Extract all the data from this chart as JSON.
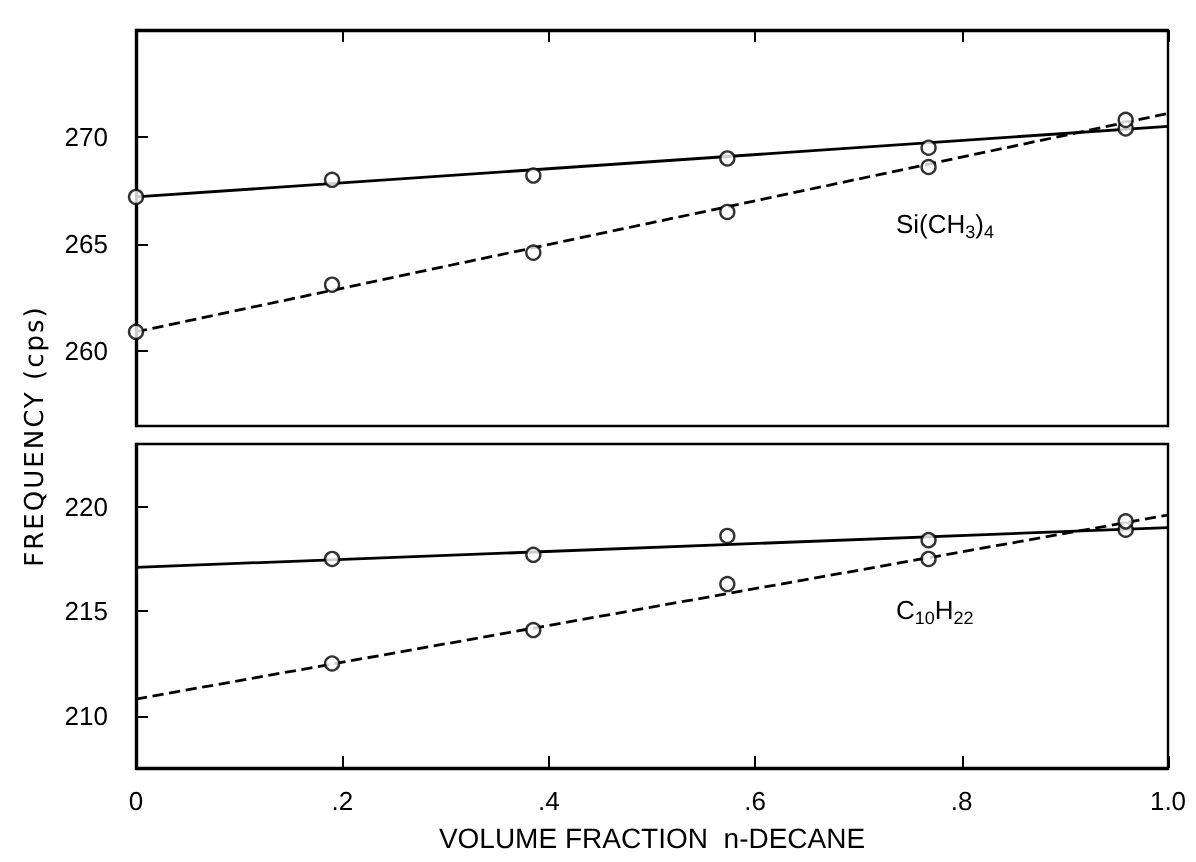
{
  "chart_data": [
    {
      "type": "scatter",
      "ylabel": "FREQUENCY (cps)",
      "xlim": [
        0,
        1.0
      ],
      "xticks": [
        {
          "value": 0,
          "label": null
        },
        {
          "value": 0.2,
          "label": null
        },
        {
          "value": 0.4,
          "label": null
        },
        {
          "value": 0.6,
          "label": null
        },
        {
          "value": 0.8,
          "label": null
        },
        {
          "value": 1.0,
          "label": null
        }
      ],
      "ylim": [
        256.5,
        275
      ],
      "yticks": [
        260,
        265,
        270
      ],
      "tick_labels": "y",
      "grid": false,
      "annotations": [
        "Si(CH$_{3}$)$_{4}$"
      ],
      "series": [
        {
          "marker": "circle",
          "color": "#000000",
          "x": [
            0,
            0.19,
            0.385,
            0.573,
            0.768,
            0.959
          ],
          "values": [
            267.2,
            268.0,
            268.2,
            269.0,
            269.5,
            270.4
          ]
        },
        {
          "marker": "circle",
          "color": "#000000",
          "x": [
            0,
            0.19,
            0.385,
            0.573,
            0.768,
            0.959
          ],
          "values": [
            260.9,
            263.1,
            264.6,
            266.5,
            268.6,
            270.8
          ]
        },
        {
          "type": "line",
          "marker": "none",
          "line_style": "solid",
          "color": "#000000",
          "x": [
            0,
            1.0
          ],
          "values": [
            267.2,
            270.5
          ]
        },
        {
          "type": "line",
          "marker": "none",
          "line_style": "dashed",
          "color": "#000000",
          "x": [
            0,
            1.0
          ],
          "values": [
            260.9,
            271.1
          ]
        }
      ]
    },
    {
      "type": "scatter",
      "xlabel": "VOLUME FRACTION  n-DECANE",
      "xlim": [
        0,
        1.0
      ],
      "xticks": [
        0,
        {
          "value": 0.2,
          "label": ".2"
        },
        {
          "value": 0.4,
          "label": ".4"
        },
        {
          "value": 0.6,
          "label": ".6"
        },
        {
          "value": 0.8,
          "label": ".8"
        },
        {
          "value": 1.0,
          "label": "1.0"
        }
      ],
      "ylim": [
        207.5,
        223
      ],
      "yticks": [
        210,
        215,
        220
      ],
      "grid": false,
      "annotations": [
        "C$_{10}$H$_{22}$"
      ],
      "series": [
        {
          "marker": "circle",
          "color": "#000000",
          "x": [
            0.19,
            0.385,
            0.573,
            0.768,
            0.959
          ],
          "values": [
            217.5,
            217.7,
            218.6,
            218.4,
            218.9
          ]
        },
        {
          "marker": "circle",
          "color": "#000000",
          "x": [
            0.19,
            0.385,
            0.573,
            0.768,
            0.959
          ],
          "values": [
            212.5,
            214.1,
            216.3,
            217.5,
            219.3
          ]
        },
        {
          "type": "line",
          "marker": "none",
          "line_style": "solid",
          "color": "#000000",
          "x": [
            0,
            1.0
          ],
          "values": [
            217.1,
            219.0
          ]
        },
        {
          "type": "line",
          "marker": "none",
          "line_style": "dashed",
          "color": "#000000",
          "x": [
            0,
            1.0
          ],
          "values": [
            210.8,
            219.6
          ]
        }
      ]
    }
  ]
}
